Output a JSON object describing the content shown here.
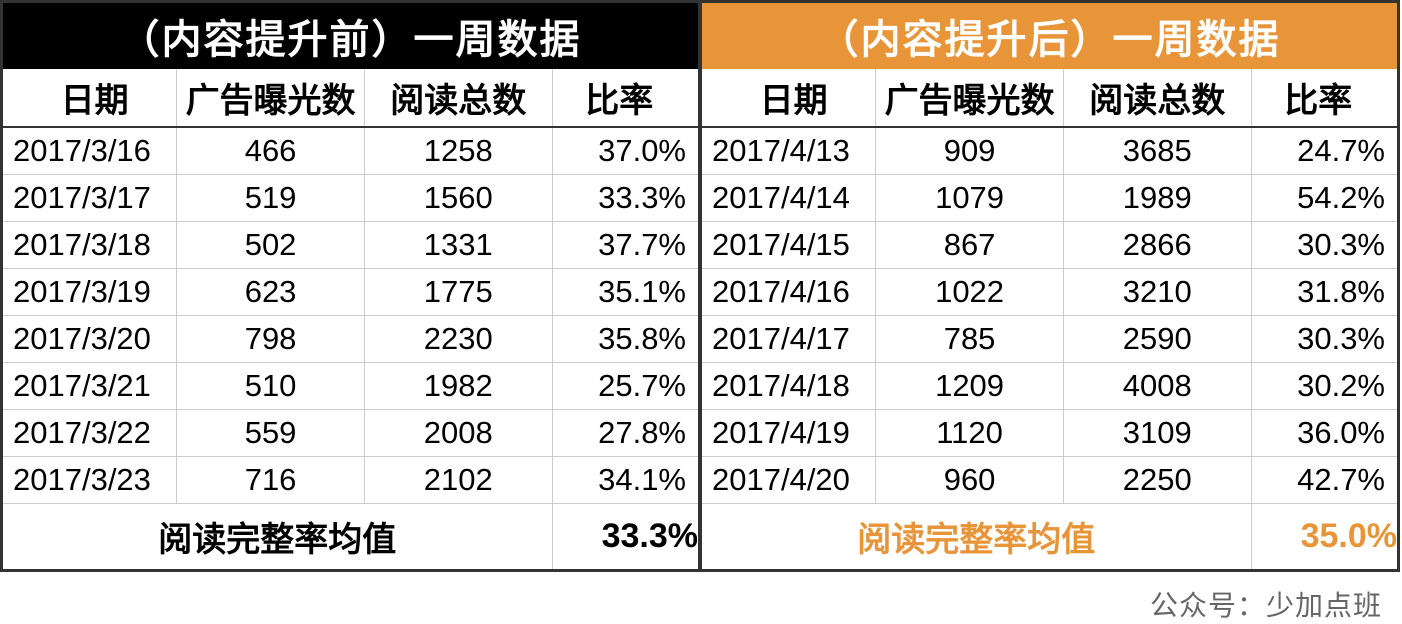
{
  "tables": {
    "left": {
      "title": "（内容提升前）一周数据",
      "title_bg_color": "#000000",
      "title_text_color": "#ffffff",
      "columns": [
        "日期",
        "广告曝光数",
        "阅读总数",
        "比率"
      ],
      "rows": [
        [
          "2017/3/16",
          "466",
          "1258",
          "37.0%"
        ],
        [
          "2017/3/17",
          "519",
          "1560",
          "33.3%"
        ],
        [
          "2017/3/18",
          "502",
          "1331",
          "37.7%"
        ],
        [
          "2017/3/19",
          "623",
          "1775",
          "35.1%"
        ],
        [
          "2017/3/20",
          "798",
          "2230",
          "35.8%"
        ],
        [
          "2017/3/21",
          "510",
          "1982",
          "25.7%"
        ],
        [
          "2017/3/22",
          "559",
          "2008",
          "27.8%"
        ],
        [
          "2017/3/23",
          "716",
          "2102",
          "34.1%"
        ]
      ],
      "summary_label": "阅读完整率均值",
      "summary_value": "33.3%",
      "summary_color": "#000000"
    },
    "right": {
      "title": "（内容提升后）一周数据",
      "title_bg_color": "#e8953a",
      "title_text_color": "#ffffff",
      "columns": [
        "日期",
        "广告曝光数",
        "阅读总数",
        "比率"
      ],
      "rows": [
        [
          "2017/4/13",
          "909",
          "3685",
          "24.7%"
        ],
        [
          "2017/4/14",
          "1079",
          "1989",
          "54.2%"
        ],
        [
          "2017/4/15",
          "867",
          "2866",
          "30.3%"
        ],
        [
          "2017/4/16",
          "1022",
          "3210",
          "31.8%"
        ],
        [
          "2017/4/17",
          "785",
          "2590",
          "30.3%"
        ],
        [
          "2017/4/18",
          "1209",
          "4008",
          "30.2%"
        ],
        [
          "2017/4/19",
          "1120",
          "3109",
          "36.0%"
        ],
        [
          "2017/4/20",
          "960",
          "2250",
          "42.7%"
        ]
      ],
      "summary_label": "阅读完整率均值",
      "summary_value": "35.0%",
      "summary_color": "#e8953a"
    }
  },
  "credit": "公众号：少加点班",
  "styling": {
    "border_color": "#333333",
    "grid_color": "#cccccc",
    "background_color": "#ffffff",
    "title_fontsize": 40,
    "header_fontsize": 34,
    "cell_fontsize": 31,
    "summary_fontsize": 34,
    "credit_fontsize": 28,
    "credit_color": "#666666"
  }
}
